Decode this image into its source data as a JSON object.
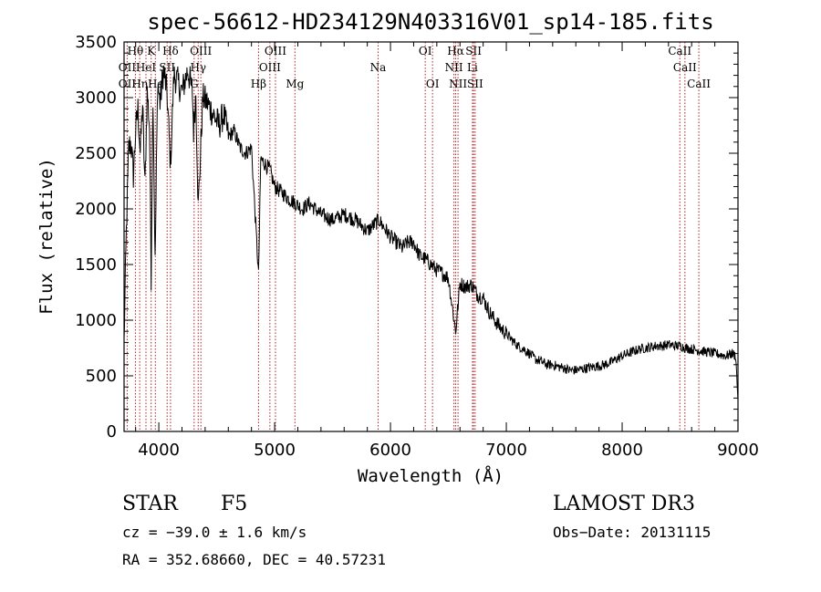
{
  "chart_data": {
    "type": "line",
    "title": "spec-56612-HD234129N403316V01_sp14-185.fits",
    "xlabel": "Wavelength (Å)",
    "ylabel": "Flux (relative)",
    "xlim": [
      3700,
      9000
    ],
    "ylim": [
      0,
      3500
    ],
    "xticks": [
      4000,
      5000,
      6000,
      7000,
      8000,
      9000
    ],
    "yticks": [
      0,
      500,
      1000,
      1500,
      2000,
      2500,
      3000,
      3500
    ],
    "grid": false,
    "line_color": "#000000",
    "marker_color": "#b22222",
    "spectrum": {
      "x": [
        3700,
        3720,
        3740,
        3760,
        3780,
        3800,
        3820,
        3840,
        3860,
        3880,
        3900,
        3920,
        3934,
        3950,
        3968,
        3990,
        4010,
        4040,
        4070,
        4101,
        4130,
        4160,
        4200,
        4250,
        4290,
        4300,
        4320,
        4340,
        4380,
        4420,
        4470,
        4520,
        4560,
        4600,
        4650,
        4700,
        4750,
        4800,
        4861,
        4880,
        4920,
        4960,
        5000,
        5060,
        5110,
        5180,
        5240,
        5300,
        5400,
        5500,
        5600,
        5700,
        5800,
        5900,
        6000,
        6100,
        6150,
        6200,
        6250,
        6300,
        6350,
        6400,
        6450,
        6500,
        6563,
        6600,
        6650,
        6700,
        6750,
        6800,
        6850,
        6900,
        6950,
        7000,
        7050,
        7100,
        7150,
        7200,
        7250,
        7300,
        7350,
        7400,
        7450,
        7500,
        7550,
        7600,
        7650,
        7700,
        7750,
        7800,
        7850,
        7900,
        7950,
        8000,
        8050,
        8100,
        8150,
        8200,
        8250,
        8300,
        8350,
        8400,
        8450,
        8500,
        8550,
        8600,
        8650,
        8700,
        8750,
        8800,
        8850,
        8900,
        8950,
        8980,
        9000
      ],
      "y": [
        800,
        1800,
        2550,
        2600,
        2300,
        2700,
        2900,
        2500,
        2950,
        2200,
        3050,
        2750,
        1400,
        3050,
        1500,
        3150,
        2950,
        3250,
        3050,
        2400,
        3200,
        3150,
        3050,
        3250,
        3050,
        2700,
        3050,
        2000,
        3000,
        2950,
        2850,
        2750,
        2850,
        2650,
        2700,
        2550,
        2500,
        2550,
        1400,
        2450,
        2400,
        2350,
        2200,
        2150,
        2100,
        2050,
        2000,
        2050,
        1950,
        1900,
        1950,
        1900,
        1800,
        1900,
        1750,
        1650,
        1700,
        1700,
        1580,
        1550,
        1500,
        1450,
        1420,
        1380,
        900,
        1330,
        1300,
        1320,
        1230,
        1200,
        1080,
        1000,
        930,
        880,
        820,
        770,
        740,
        700,
        650,
        630,
        600,
        600,
        580,
        570,
        550,
        550,
        560,
        570,
        580,
        590,
        600,
        620,
        650,
        680,
        700,
        720,
        740,
        750,
        760,
        770,
        770,
        780,
        770,
        770,
        750,
        740,
        730,
        720,
        710,
        700,
        690,
        680,
        700,
        680,
        280
      ]
    },
    "lines_top": [
      {
        "label": "Hθ",
        "x": 3798
      },
      {
        "label": "K",
        "x": 3934
      },
      {
        "label": "Hδ",
        "x": 4101
      },
      {
        "label": "OIII",
        "x": 4363
      },
      {
        "label": "OIII",
        "x": 5007
      },
      {
        "label": "OI",
        "x": 6300
      },
      {
        "label": "Hα",
        "x": 6563
      },
      {
        "label": "SII",
        "x": 6717
      },
      {
        "label": "CaII",
        "x": 8498
      }
    ],
    "lines_mid": [
      {
        "label": "OII",
        "x": 3727
      },
      {
        "label": "HeI",
        "x": 3889
      },
      {
        "label": "SII",
        "x": 4072
      },
      {
        "label": "Hγ",
        "x": 4340
      },
      {
        "label": "OIII",
        "x": 4959
      },
      {
        "label": "Na",
        "x": 5893
      },
      {
        "label": "NII",
        "x": 6548
      },
      {
        "label": "Li",
        "x": 6708
      },
      {
        "label": "CaII",
        "x": 8542
      }
    ],
    "lines_low": [
      {
        "label": "OII",
        "x": 3727
      },
      {
        "label": "Hη",
        "x": 3835
      },
      {
        "label": "Hε",
        "x": 3970
      },
      {
        "label": "G",
        "x": 4305
      },
      {
        "label": "Hβ",
        "x": 4861
      },
      {
        "label": "Mg",
        "x": 5175
      },
      {
        "label": "OI",
        "x": 6363
      },
      {
        "label": "NII",
        "x": 6583
      },
      {
        "label": "SII",
        "x": 6731
      },
      {
        "label": "CaII",
        "x": 8662
      }
    ]
  },
  "info": {
    "object_class": "STAR",
    "subclass": "F5",
    "survey": "LAMOST DR3",
    "cz": "cz = −39.0 ± 1.6 km/s",
    "obs_date": "Obs−Date: 20131115",
    "coords": "RA = 352.68660, DEC =  40.57231"
  }
}
